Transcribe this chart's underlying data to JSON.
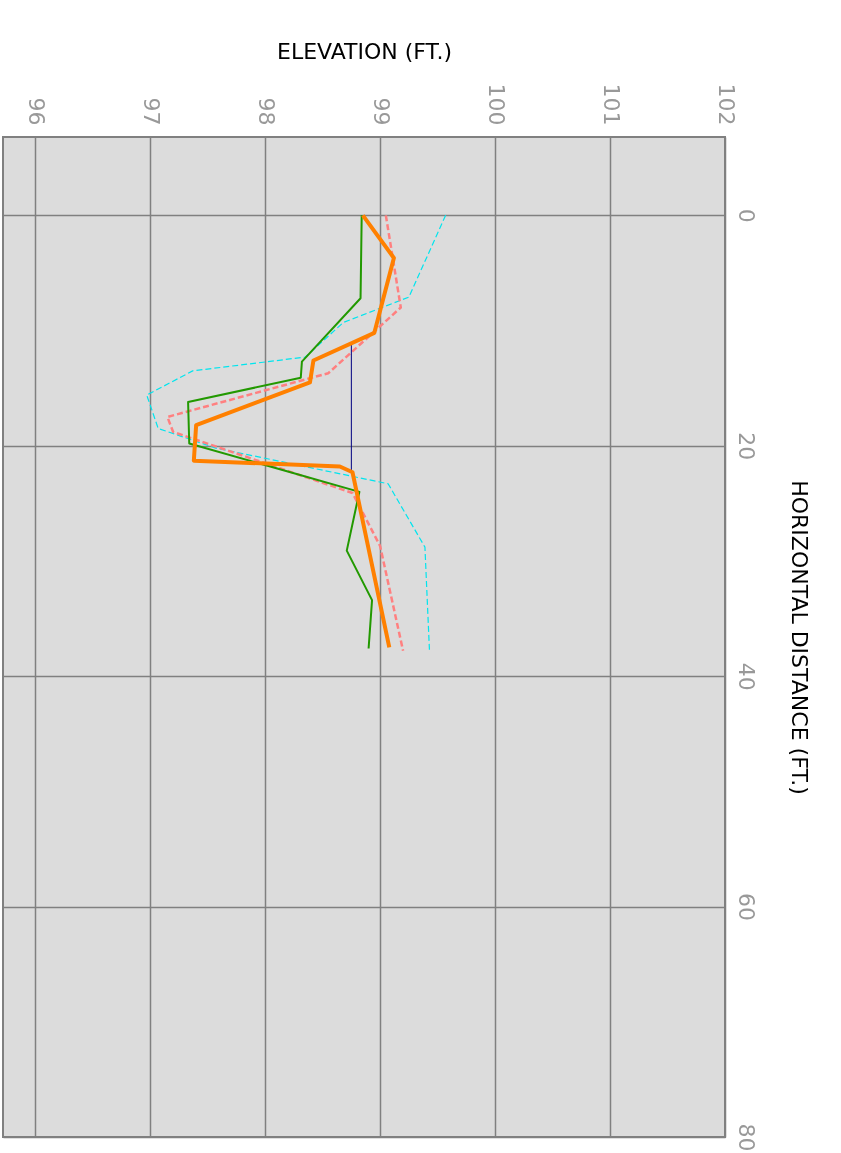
{
  "chart_data": {
    "type": "line",
    "xlabel": "ELEVATION  (FT.)",
    "ylabel": "HORIZONTAL DISTANCE  (FT.)",
    "xlim": [
      95.72,
      102
    ],
    "xticks": [
      96,
      97,
      98,
      99,
      100,
      101,
      102
    ],
    "ylim": [
      80,
      -6.8
    ],
    "yticks": [
      0,
      20,
      40,
      60,
      80
    ],
    "grid": true,
    "series": [
      {
        "color": "#00e5ee",
        "line_style": "dashed",
        "x": [
          99.57,
          99.25,
          98.68,
          98.35,
          97.37,
          96.97,
          97.07,
          97.57,
          99.07,
          99.39,
          99.43
        ],
        "values": [
          0,
          7.1,
          9.3,
          12.3,
          13.5,
          15.6,
          18.5,
          20.2,
          23.3,
          28.8,
          37.9
        ]
      },
      {
        "color": "#ff8080",
        "line_style": "dashed",
        "x": [
          99.05,
          99.18,
          98.55,
          97.15,
          97.2,
          98.76,
          99.0,
          99.2
        ],
        "values": [
          0,
          8.0,
          13.7,
          17.5,
          18.8,
          24.1,
          28.7,
          37.8
        ]
      },
      {
        "color": "#229900",
        "line_style": "solid",
        "x": [
          98.84,
          98.83,
          98.32,
          98.31,
          97.33,
          97.34,
          98.82,
          98.71,
          98.93,
          98.9
        ],
        "values": [
          0,
          7.2,
          12.7,
          14.1,
          16.2,
          19.8,
          24.0,
          29.1,
          33.4,
          37.6
        ]
      },
      {
        "color": "#000080",
        "line_style": "solid",
        "x": [
          98.75,
          98.75
        ],
        "values": [
          11.2,
          22.1
        ]
      },
      {
        "color": "#ff8000",
        "line_style": "solid",
        "x": [
          98.85,
          99.12,
          98.95,
          98.42,
          98.39,
          97.4,
          97.38,
          98.65,
          98.76,
          99.08
        ],
        "values": [
          0,
          3.7,
          10.2,
          12.6,
          14.5,
          18.2,
          21.3,
          21.8,
          22.3,
          37.5
        ]
      }
    ]
  }
}
